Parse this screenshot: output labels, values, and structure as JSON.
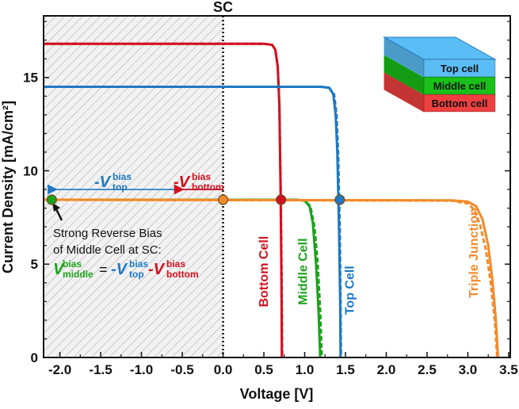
{
  "chart_data": {
    "type": "line",
    "xlabel": "Voltage [V]",
    "ylabel": "Current Density [mA/cm²]",
    "xlim": [
      -2.2,
      3.52
    ],
    "ylim": [
      0,
      18.3
    ],
    "xticks": [
      -2.0,
      -1.5,
      -1.0,
      -0.5,
      0.0,
      0.5,
      1.0,
      1.5,
      2.0,
      2.5,
      3.0,
      3.5
    ],
    "xtick_labels": [
      "-2.0",
      "-1.5",
      "-1.0",
      "-0.5",
      "0.0",
      "0.5",
      "1.0",
      "1.5",
      "2.0",
      "2.5",
      "3.0",
      "3.5"
    ],
    "yticks": [
      0,
      5,
      10,
      15
    ],
    "ytick_labels": [
      "0",
      "5",
      "10",
      "15"
    ],
    "grid": false,
    "sc_label": "SC",
    "sc_voltage": 0.0,
    "shaded_region": {
      "x": [
        -2.2,
        0.0
      ],
      "pattern": "gray hatch"
    },
    "series": [
      {
        "name": "Bottom Cell",
        "color": "#d2101e",
        "solid": [
          [
            -2.2,
            16.8
          ],
          [
            0.5,
            16.8
          ],
          [
            0.6,
            16.75
          ],
          [
            0.64,
            16.5
          ],
          [
            0.67,
            15.6
          ],
          [
            0.69,
            13.5
          ],
          [
            0.705,
            9
          ],
          [
            0.715,
            4
          ],
          [
            0.72,
            0
          ]
        ],
        "dashed": [
          [
            -2.2,
            16.8
          ],
          [
            0.5,
            16.8
          ],
          [
            0.6,
            16.75
          ],
          [
            0.64,
            16.5
          ],
          [
            0.67,
            15.6
          ],
          [
            0.69,
            13.5
          ],
          [
            0.707,
            9
          ],
          [
            0.718,
            4
          ],
          [
            0.724,
            0
          ]
        ]
      },
      {
        "name": "Middle Cell",
        "color": "#1ca21c",
        "solid": [
          [
            -2.2,
            8.45
          ],
          [
            0.9,
            8.45
          ],
          [
            1.0,
            8.4
          ],
          [
            1.06,
            8.1
          ],
          [
            1.1,
            7.2
          ],
          [
            1.14,
            5
          ],
          [
            1.17,
            2.5
          ],
          [
            1.19,
            0
          ]
        ],
        "dashed": [
          [
            -2.2,
            8.45
          ],
          [
            0.9,
            8.45
          ],
          [
            1.0,
            8.4
          ],
          [
            1.07,
            8.1
          ],
          [
            1.12,
            7.0
          ],
          [
            1.16,
            5
          ],
          [
            1.19,
            2.5
          ],
          [
            1.21,
            0
          ]
        ]
      },
      {
        "name": "Top Cell",
        "color": "#1f78c1",
        "solid": [
          [
            -2.2,
            14.5
          ],
          [
            1.2,
            14.5
          ],
          [
            1.3,
            14.45
          ],
          [
            1.35,
            14.1
          ],
          [
            1.38,
            13
          ],
          [
            1.4,
            11
          ],
          [
            1.42,
            7
          ],
          [
            1.435,
            3
          ],
          [
            1.44,
            0
          ]
        ],
        "dashed": [
          [
            -2.2,
            14.5
          ],
          [
            1.2,
            14.5
          ],
          [
            1.3,
            14.45
          ],
          [
            1.36,
            14.1
          ],
          [
            1.39,
            13
          ],
          [
            1.41,
            11
          ],
          [
            1.43,
            7
          ],
          [
            1.44,
            3
          ],
          [
            1.445,
            0
          ]
        ]
      },
      {
        "name": "Triple Junction",
        "color": "#f28a2a",
        "solid": [
          [
            -2.2,
            8.45
          ],
          [
            2.8,
            8.42
          ],
          [
            3.0,
            8.35
          ],
          [
            3.1,
            8.1
          ],
          [
            3.18,
            7.4
          ],
          [
            3.25,
            6
          ],
          [
            3.3,
            4.2
          ],
          [
            3.34,
            2.2
          ],
          [
            3.37,
            0
          ]
        ],
        "dashed": [
          [
            -2.2,
            8.45
          ],
          [
            2.8,
            8.4
          ],
          [
            3.0,
            8.25
          ],
          [
            3.08,
            7.9
          ],
          [
            3.15,
            7.1
          ],
          [
            3.22,
            5.8
          ],
          [
            3.28,
            4
          ],
          [
            3.33,
            2
          ],
          [
            3.36,
            0
          ]
        ]
      }
    ],
    "markers": [
      {
        "x": -2.1,
        "y": 8.45,
        "color": "#1ca21c"
      },
      {
        "x": 0.0,
        "y": 8.45,
        "color": "#f28a2a"
      },
      {
        "x": 0.71,
        "y": 8.45,
        "color": "#d2101e"
      },
      {
        "x": 1.43,
        "y": 8.45,
        "color": "#1f78c1"
      }
    ],
    "series_labels": [
      {
        "text": "Bottom Cell",
        "x": 0.55,
        "y": 4.6,
        "color": "#d2101e"
      },
      {
        "text": "Middle Cell",
        "x": 1.03,
        "y": 4.6,
        "color": "#1ca21c"
      },
      {
        "text": "Top Cell",
        "x": 1.6,
        "y": 3.6,
        "color": "#1f78c1"
      },
      {
        "text": "Triple Junction",
        "x": 3.12,
        "y": 5.6,
        "color": "#f28a2a"
      }
    ],
    "annotations": {
      "v_top_bias": {
        "prefix": "-V",
        "sup": "bias",
        "sub": "top",
        "color": "#1f78c1"
      },
      "v_bottom_bias": {
        "prefix": "-V",
        "sup": "bias",
        "sub": "bottom",
        "color": "#d2101e"
      },
      "v_middle_bias": {
        "prefix": "V",
        "sup": "bias",
        "sub": "middle",
        "color": "#1ca21c"
      },
      "note_line1": "Strong Reverse Bias",
      "note_line2": "of Middle Cell at SC:",
      "equals": "=",
      "blue_arrow": {
        "from": 0.0,
        "to": -2.1,
        "y": 9.0
      },
      "red_arrow": {
        "from": 0.0,
        "to": -0.55,
        "y": 9.0
      }
    },
    "legend_stack": {
      "layers": [
        {
          "label": "Top cell",
          "color": "#5bbdf5"
        },
        {
          "label": "Middle cell",
          "color": "#19c019"
        },
        {
          "label": "Bottom cell",
          "color": "#ee4040"
        }
      ],
      "placement": "top-right"
    }
  }
}
